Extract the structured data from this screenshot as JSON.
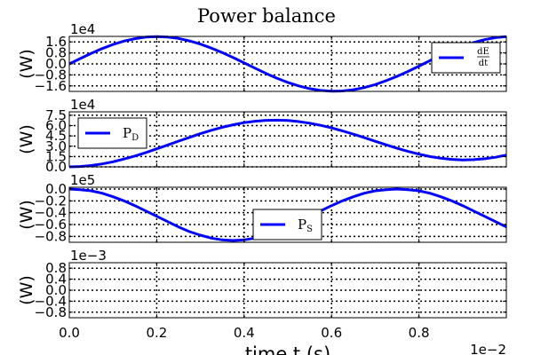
{
  "chart_data": {
    "type": "line",
    "title": "Power balance",
    "xlabel": "time t (s)",
    "x_multiplier": "1e−2",
    "x": [
      0,
      0.025,
      0.05,
      0.075,
      0.1,
      0.125,
      0.15,
      0.175,
      0.2,
      0.225,
      0.25,
      0.275,
      0.3,
      0.325,
      0.35,
      0.375,
      0.4,
      0.425,
      0.45,
      0.475,
      0.5,
      0.525,
      0.55,
      0.575,
      0.6,
      0.625,
      0.65,
      0.675,
      0.7,
      0.725,
      0.75,
      0.775,
      0.8,
      0.825,
      0.85,
      0.875,
      0.9,
      0.925,
      0.95,
      0.975,
      1.0
    ],
    "xlim": [
      0,
      1.0
    ],
    "xticks": [
      "0.0",
      "0.2",
      "0.4",
      "0.6",
      "0.8"
    ],
    "xtick_values": [
      0.0,
      0.2,
      0.4,
      0.6,
      0.8
    ],
    "grid": true,
    "panels": [
      {
        "ylabel": "(W)",
        "multiplier": "1e4",
        "ylim": [
          -2.0,
          2.0
        ],
        "yticks": [
          "1.6",
          "0.8",
          "0.0",
          "−0.8",
          "−1.6"
        ],
        "ytick_values": [
          1.6,
          0.8,
          0.0,
          -0.8,
          -1.6
        ],
        "legend": "dE/dt",
        "legend_position": "upper right",
        "series": [
          {
            "name": "dE/dt",
            "color": "#0000ff",
            "values": [
              0.0,
              0.39,
              0.77,
              1.11,
              1.41,
              1.66,
              1.83,
              1.95,
              1.99,
              1.95,
              1.85,
              1.67,
              1.44,
              1.15,
              0.82,
              0.46,
              0.07,
              -0.31,
              -0.69,
              -1.04,
              -1.35,
              -1.6,
              -1.8,
              -1.93,
              -1.99,
              -1.97,
              -1.88,
              -1.72,
              -1.5,
              -1.22,
              -0.9,
              -0.55,
              -0.16,
              0.23,
              0.61,
              0.97,
              1.28,
              1.55,
              1.76,
              1.91,
              1.98
            ]
          }
        ]
      },
      {
        "ylabel": "(W)",
        "multiplier": "1e4",
        "ylim": [
          0,
          8.0
        ],
        "yticks": [
          "7.5",
          "6.0",
          "4.5",
          "3.0",
          "1.5",
          "0.0"
        ],
        "ytick_values": [
          7.5,
          6.0,
          4.5,
          3.0,
          1.5,
          0.0
        ],
        "legend": "P_D",
        "legend_position": "upper left",
        "series": [
          {
            "name": "P_D",
            "color": "#0000ff",
            "values": [
              0.0,
              0.05,
              0.19,
              0.42,
              0.74,
              1.13,
              1.58,
              2.08,
              2.62,
              3.17,
              3.74,
              4.29,
              4.82,
              5.31,
              5.75,
              6.12,
              6.42,
              6.63,
              6.76,
              6.79,
              6.73,
              6.58,
              6.35,
              6.04,
              5.66,
              5.23,
              4.75,
              4.24,
              3.72,
              3.2,
              2.7,
              2.24,
              1.84,
              1.5,
              1.25,
              1.08,
              1.01,
              1.04,
              1.17,
              1.4,
              1.72
            ]
          }
        ]
      },
      {
        "ylabel": "(W)",
        "multiplier": "1e5",
        "ylim": [
          -0.9,
          0.03
        ],
        "yticks": [
          "0.0",
          "−0.2",
          "−0.4",
          "−0.6",
          "−0.8"
        ],
        "ytick_values": [
          0.0,
          -0.2,
          -0.4,
          -0.6,
          -0.8
        ],
        "legend": "P_S",
        "legend_position": "lower center",
        "series": [
          {
            "name": "P_S",
            "color": "#0000ff",
            "values": [
              0.0,
              -0.01,
              -0.03,
              -0.07,
              -0.13,
              -0.2,
              -0.28,
              -0.37,
              -0.46,
              -0.55,
              -0.64,
              -0.72,
              -0.78,
              -0.83,
              -0.86,
              -0.87,
              -0.86,
              -0.83,
              -0.78,
              -0.72,
              -0.64,
              -0.55,
              -0.46,
              -0.37,
              -0.28,
              -0.2,
              -0.13,
              -0.07,
              -0.03,
              -0.01,
              0.0,
              -0.01,
              -0.03,
              -0.07,
              -0.13,
              -0.2,
              -0.28,
              -0.37,
              -0.46,
              -0.55,
              -0.64
            ]
          }
        ]
      },
      {
        "ylabel": "(W)",
        "multiplier": "1e−3",
        "ylim": [
          -1.0,
          1.0
        ],
        "yticks": [
          "0.8",
          "0.4",
          "0.0",
          "−0.4",
          "−0.8"
        ],
        "ytick_values": [
          0.8,
          0.4,
          0.0,
          -0.4,
          -0.8
        ],
        "series": []
      }
    ]
  }
}
